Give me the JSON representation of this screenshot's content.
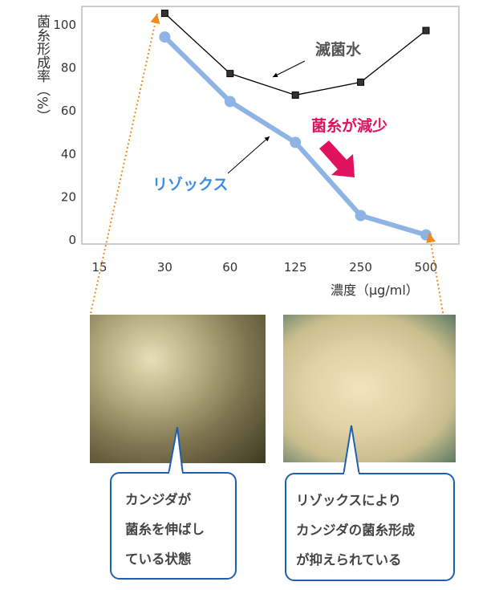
{
  "chart_data": {
    "type": "line",
    "categories": [
      "15",
      "30",
      "60",
      "125",
      "250",
      "500"
    ],
    "xlabel": "濃度（μg/ml）",
    "ylabel": "菌糸形成率（%）",
    "ylim": [
      0,
      100
    ],
    "yticks": [
      "0",
      "20",
      "40",
      "60",
      "80",
      "100"
    ],
    "grid": false,
    "series": [
      {
        "name": "滅菌水",
        "x": [
          "30",
          "60",
          "125",
          "250",
          "500"
        ],
        "values": [
          105,
          77,
          67,
          73,
          97
        ],
        "color": "#000000",
        "marker": "square"
      },
      {
        "name": "リゾックス",
        "x": [
          "30",
          "60",
          "125",
          "250",
          "500"
        ],
        "values": [
          94,
          64,
          45,
          11,
          2
        ],
        "color": "#8fb4e3",
        "marker": "circle"
      }
    ],
    "annotations": [
      {
        "text": "滅菌水",
        "color": "#555555"
      },
      {
        "text": "リゾックス",
        "color": "#3a8ee6"
      },
      {
        "text": "菌糸が減少",
        "color": "#e0115f"
      }
    ]
  },
  "photos": {
    "left": {
      "caption": [
        "カンジダが",
        "菌糸を伸ばし",
        "ている状態"
      ]
    },
    "right": {
      "caption": [
        "リゾックスにより",
        "カンジダの菌糸形成",
        "が抑えられている"
      ]
    }
  },
  "colors": {
    "callout_border": "#1f5fae",
    "guide": "#f08a1c",
    "highlight": "#e0115f"
  }
}
